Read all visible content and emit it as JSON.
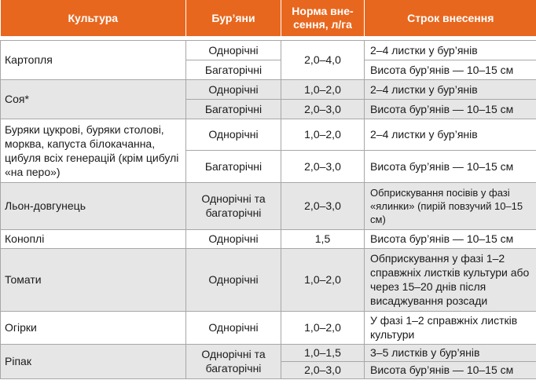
{
  "headers": {
    "crop": "Культура",
    "weeds": "Бур’яни",
    "rate": "Норма вне-сення, л/га",
    "timing": "Строк внесення"
  },
  "rows": [
    {
      "crop": "Картопля",
      "weeds": "Однорічні",
      "rate": "2,0–4,0",
      "timing": "2–4 листки у бур’янів"
    },
    {
      "weeds": "Багаторічні",
      "timing": "Висота бур’янів — 10–15 см"
    },
    {
      "crop": "Соя*",
      "weeds": "Однорічні",
      "rate": "1,0–2,0",
      "timing": "2–4 листки у бур’янів"
    },
    {
      "weeds": "Багаторічні",
      "rate": "2,0–3,0",
      "timing": "Висота бур’янів — 10–15 см"
    },
    {
      "crop": "Буряки цукрові, буряки столові, морква, капуста білокачанна, цибуля всіх генерацій (крім цибулі «на перо»)",
      "weeds": "Однорічні",
      "rate": "1,0–2,0",
      "timing": "2–4 листки у бур’янів"
    },
    {
      "weeds": "Багаторічні",
      "rate": "2,0–3,0",
      "timing": "Висота бур’янів — 10–15 см"
    },
    {
      "crop": "Льон-довгунець",
      "weeds": "Однорічні та багаторічні",
      "rate": "2,0–3,0",
      "timing": "Обприскування посівів у фазі «ялинки» (пирій повзучий 10–15 см)"
    },
    {
      "crop": "Коноплі",
      "weeds": "Однорічні",
      "rate": "1,5",
      "timing": "Висота бур’янів — 10–15 см"
    },
    {
      "crop": "Томати",
      "weeds": "Однорічні",
      "rate": "1,0–2,0",
      "timing": "Обприскування у фазі 1–2 справжніх листків культури або через 15–20 днів після висаджування розсади"
    },
    {
      "crop": "Огірки",
      "weeds": "Однорічні",
      "rate": "1,0–2,0",
      "timing": "У фазі 1–2 справжніх листків культури"
    },
    {
      "crop": "Ріпак",
      "weeds": "Однорічні та багаторічні",
      "rate": "1,0–1,5",
      "timing": "3–5 листків у бур’янів"
    },
    {
      "rate": "2,0–3,0",
      "timing": "Висота бур’янів — 10–15 см"
    }
  ],
  "colors": {
    "header_bg": "#e8671e",
    "header_text": "#ffffff",
    "shade_bg": "#e6e6e6",
    "border": "#a7a7a7"
  }
}
